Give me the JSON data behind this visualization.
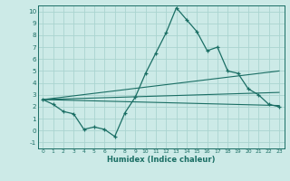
{
  "title": "",
  "xlabel": "Humidex (Indice chaleur)",
  "ylabel": "",
  "background_color": "#cceae7",
  "grid_color": "#aad4d0",
  "line_color": "#1a6e64",
  "xlim": [
    -0.5,
    23.5
  ],
  "ylim": [
    -1.5,
    10.5
  ],
  "xticks": [
    0,
    1,
    2,
    3,
    4,
    5,
    6,
    7,
    8,
    9,
    10,
    11,
    12,
    13,
    14,
    15,
    16,
    17,
    18,
    19,
    20,
    21,
    22,
    23
  ],
  "yticks": [
    -1,
    0,
    1,
    2,
    3,
    4,
    5,
    6,
    7,
    8,
    9,
    10
  ],
  "series": [
    {
      "x": [
        0,
        1,
        2,
        3,
        4,
        5,
        6,
        7,
        8,
        9,
        10,
        11,
        12,
        13,
        14,
        15,
        16,
        17,
        18,
        19,
        20,
        21,
        22,
        23
      ],
      "y": [
        2.6,
        2.2,
        1.6,
        1.4,
        0.1,
        0.3,
        0.1,
        -0.5,
        1.5,
        2.8,
        4.8,
        6.5,
        8.2,
        10.3,
        9.3,
        8.3,
        6.7,
        7.0,
        5.0,
        4.8,
        3.5,
        3.0,
        2.2,
        2.0
      ]
    },
    {
      "x": [
        0,
        23
      ],
      "y": [
        2.6,
        2.1
      ]
    },
    {
      "x": [
        0,
        23
      ],
      "y": [
        2.6,
        3.2
      ]
    },
    {
      "x": [
        0,
        23
      ],
      "y": [
        2.6,
        5.0
      ]
    }
  ]
}
